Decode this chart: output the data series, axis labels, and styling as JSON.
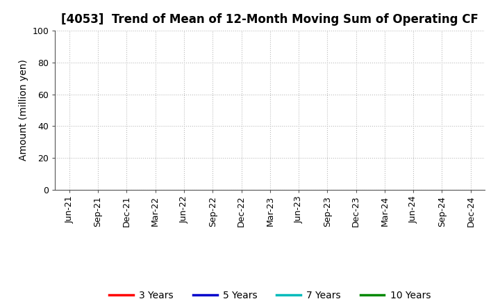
{
  "title": "[4053]  Trend of Mean of 12-Month Moving Sum of Operating CF",
  "ylabel": "Amount (million yen)",
  "ylim": [
    0,
    100
  ],
  "yticks": [
    0,
    20,
    40,
    60,
    80,
    100
  ],
  "x_labels": [
    "Jun-21",
    "Sep-21",
    "Dec-21",
    "Mar-22",
    "Jun-22",
    "Sep-22",
    "Dec-22",
    "Mar-23",
    "Jun-23",
    "Sep-23",
    "Dec-23",
    "Mar-24",
    "Jun-24",
    "Sep-24",
    "Dec-24"
  ],
  "legend_entries": [
    {
      "label": "3 Years",
      "color": "#FF0000"
    },
    {
      "label": "5 Years",
      "color": "#0000CC"
    },
    {
      "label": "7 Years",
      "color": "#00BBBB"
    },
    {
      "label": "10 Years",
      "color": "#008800"
    }
  ],
  "background_color": "#FFFFFF",
  "grid_color": "#BBBBBB",
  "title_fontsize": 12,
  "axis_label_fontsize": 10,
  "tick_fontsize": 9,
  "legend_fontsize": 10
}
